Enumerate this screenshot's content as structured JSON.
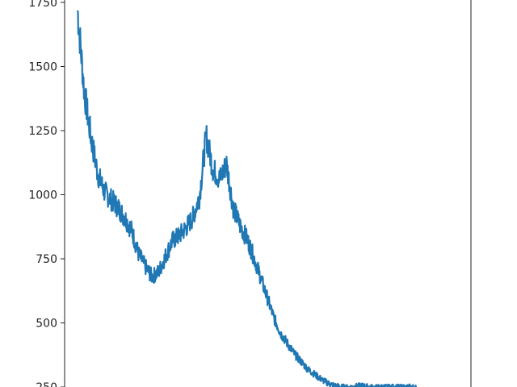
{
  "chart_data": {
    "type": "line",
    "title": "",
    "xlabel": "",
    "ylabel": "",
    "ylim": [
      250,
      1760
    ],
    "yticks": [
      "1750",
      "1500",
      "1250",
      "1000",
      "750",
      "500",
      "250"
    ],
    "grid": false,
    "legend": "none",
    "colors": {
      "line": "#1f77b4",
      "axis": "#222222",
      "background": "#ffffff"
    },
    "series": [
      {
        "x": [
          0,
          2,
          4,
          6,
          8,
          10,
          12,
          14,
          16,
          18,
          20,
          22,
          24,
          26,
          28,
          30,
          32,
          34,
          36,
          38,
          40,
          42,
          44,
          46,
          48,
          50,
          52,
          54,
          56,
          58,
          60,
          62,
          64,
          66,
          68,
          70,
          72,
          74,
          76,
          78,
          80,
          82,
          84,
          86,
          88,
          90,
          92,
          94,
          96,
          98,
          100
        ],
        "y": [
          1720,
          1400,
          1220,
          1080,
          1010,
          980,
          950,
          910,
          860,
          770,
          720,
          680,
          700,
          760,
          820,
          840,
          870,
          910,
          990,
          1230,
          1100,
          1060,
          1120,
          950,
          880,
          830,
          760,
          680,
          600,
          520,
          460,
          420,
          380,
          350,
          320,
          300,
          280,
          265,
          255,
          250,
          248,
          252,
          255,
          250,
          248,
          250,
          249,
          250,
          248,
          250,
          249
        ]
      }
    ]
  }
}
